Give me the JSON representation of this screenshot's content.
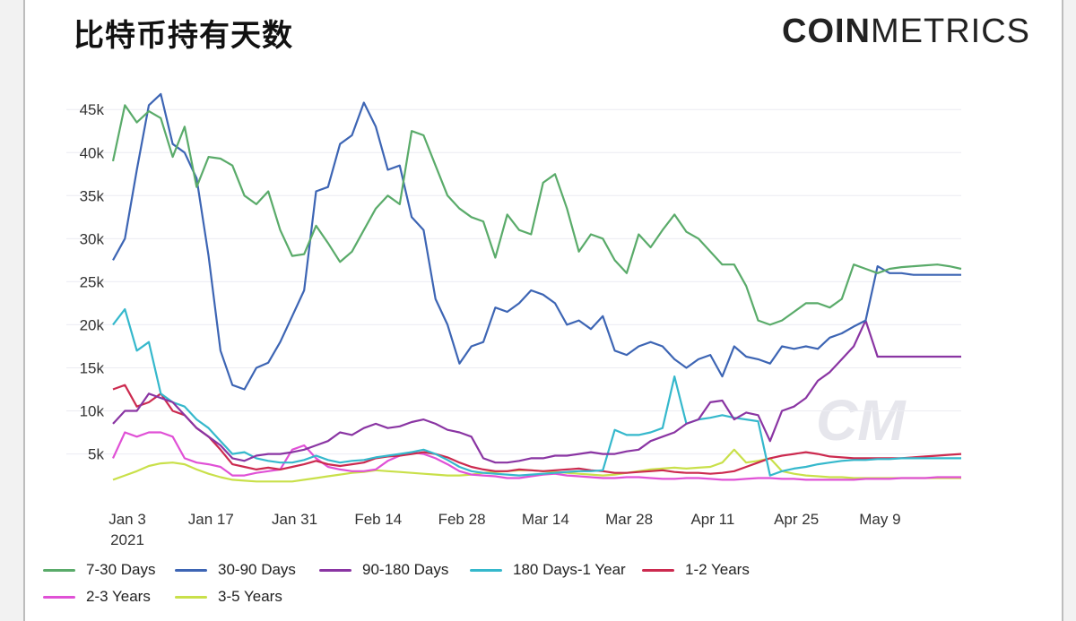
{
  "header": {
    "title": "比特币持有天数",
    "brand_part1": "COIN",
    "brand_part2": "METRICS"
  },
  "watermark": "CM",
  "chart_data": {
    "type": "line",
    "title": "比特币持有天数",
    "xlabel": "",
    "ylabel": "",
    "ylim": [
      0,
      47000
    ],
    "grid": true,
    "legend_position": "bottom-left",
    "x_tick_labels": [
      "Jan 3",
      "Jan 17",
      "Jan 31",
      "Feb 14",
      "Feb 28",
      "Mar 14",
      "Mar 28",
      "Apr 11",
      "Apr 25",
      "May 9"
    ],
    "x_tick_sublabel": "2021",
    "y_ticks": [
      5000,
      10000,
      15000,
      20000,
      25000,
      30000,
      35000,
      40000,
      45000
    ],
    "y_tick_labels": [
      "5k",
      "10k",
      "15k",
      "20k",
      "25k",
      "30k",
      "35k",
      "40k",
      "45k"
    ],
    "x_range_days": [
      0,
      142
    ],
    "series": [
      {
        "name": "7-30 Days",
        "color": "#5aab6a",
        "x": [
          0,
          2,
          4,
          6,
          8,
          10,
          12,
          14,
          16,
          18,
          20,
          22,
          24,
          26,
          28,
          30,
          32,
          34,
          36,
          38,
          40,
          42,
          44,
          46,
          48,
          50,
          52,
          54,
          56,
          58,
          60,
          62,
          64,
          66,
          68,
          70,
          72,
          74,
          76,
          78,
          80,
          82,
          84,
          86,
          88,
          90,
          92,
          94,
          96,
          98,
          100,
          102,
          104,
          106,
          108,
          110,
          112,
          114,
          116,
          118,
          120,
          122,
          124,
          126,
          128,
          130,
          132,
          134,
          136,
          138,
          140,
          142
        ],
        "y": [
          39000,
          45500,
          43500,
          44800,
          44000,
          39500,
          43000,
          36000,
          39500,
          39300,
          38500,
          35000,
          34000,
          35500,
          31000,
          28000,
          28200,
          31500,
          29500,
          27300,
          28500,
          31000,
          33500,
          35000,
          34000,
          42500,
          42000,
          38500,
          35000,
          33500,
          32500,
          32000,
          27800,
          32800,
          31000,
          30500,
          36500,
          37500,
          33500,
          28500,
          30500,
          30000,
          27500,
          26000,
          30500,
          29000,
          31000,
          32800,
          30800,
          30000,
          28500,
          27000,
          27000,
          24500,
          20500,
          20000,
          20500,
          21500,
          22500,
          22500,
          22000,
          23000,
          27000,
          26500,
          26000,
          26500,
          26700,
          26800,
          26900,
          27000,
          26800,
          26500
        ],
        "note_trend_end": "approx 26500 at May 23"
      },
      {
        "name": "30-90 Days",
        "color": "#3d65b4",
        "x": [
          0,
          2,
          4,
          6,
          8,
          10,
          12,
          14,
          16,
          18,
          20,
          22,
          24,
          26,
          28,
          30,
          32,
          34,
          36,
          38,
          40,
          42,
          44,
          46,
          48,
          50,
          52,
          54,
          56,
          58,
          60,
          62,
          64,
          66,
          68,
          70,
          72,
          74,
          76,
          78,
          80,
          82,
          84,
          86,
          88,
          90,
          92,
          94,
          96,
          98,
          100,
          102,
          104,
          106,
          108,
          110,
          112,
          114,
          116,
          118,
          120,
          122,
          124,
          126,
          128,
          130,
          132,
          134,
          136,
          138,
          140,
          142
        ],
        "y": [
          27500,
          30000,
          38000,
          45500,
          46800,
          41000,
          40000,
          37000,
          28000,
          17000,
          13000,
          12500,
          15000,
          15600,
          18000,
          21000,
          24000,
          35500,
          36000,
          41000,
          42000,
          45800,
          43000,
          38000,
          38500,
          32500,
          31000,
          23000,
          20000,
          15500,
          17500,
          18000,
          22000,
          21500,
          22500,
          24000,
          23500,
          22500,
          20000,
          20500,
          19500,
          21000,
          17000,
          16500,
          17500,
          18000,
          17500,
          16000,
          15000,
          16000,
          16500,
          14000,
          17500,
          16300,
          16000,
          15500,
          17500,
          17200,
          17500,
          17200,
          18500,
          19000,
          19800,
          20500,
          26800,
          26000,
          26000,
          25800,
          25800,
          25800,
          25800,
          25800
        ]
      },
      {
        "name": "90-180 Days",
        "color": "#8a35a3",
        "x": [
          0,
          2,
          4,
          6,
          8,
          10,
          12,
          14,
          16,
          18,
          20,
          22,
          24,
          26,
          28,
          30,
          32,
          34,
          36,
          38,
          40,
          42,
          44,
          46,
          48,
          50,
          52,
          54,
          56,
          58,
          60,
          62,
          64,
          66,
          68,
          70,
          72,
          74,
          76,
          78,
          80,
          82,
          84,
          86,
          88,
          90,
          92,
          94,
          96,
          98,
          100,
          102,
          104,
          106,
          108,
          110,
          112,
          114,
          116,
          118,
          120,
          122,
          124,
          126,
          128,
          130,
          132,
          134,
          136,
          138,
          140,
          142
        ],
        "y": [
          8500,
          10000,
          10000,
          12000,
          11500,
          11000,
          9500,
          8000,
          7000,
          6000,
          4500,
          4200,
          4800,
          5000,
          5000,
          5200,
          5500,
          6000,
          6500,
          7500,
          7200,
          8000,
          8500,
          8000,
          8200,
          8700,
          9000,
          8500,
          7800,
          7500,
          7000,
          4500,
          4000,
          4000,
          4200,
          4500,
          4500,
          4800,
          4800,
          5000,
          5200,
          5000,
          5000,
          5300,
          5500,
          6500,
          7000,
          7500,
          8500,
          9000,
          11000,
          11200,
          9000,
          9800,
          9500,
          6500,
          10000,
          10500,
          11500,
          13500,
          14500,
          16000,
          17500,
          20500,
          16300,
          16300,
          16300,
          16300,
          16300,
          16300,
          16300,
          16300
        ]
      },
      {
        "name": "180 Days-1 Year",
        "color": "#35b8cc",
        "x": [
          0,
          2,
          4,
          6,
          8,
          10,
          12,
          14,
          16,
          18,
          20,
          22,
          24,
          26,
          28,
          30,
          32,
          34,
          36,
          38,
          40,
          42,
          44,
          46,
          48,
          50,
          52,
          54,
          56,
          58,
          60,
          62,
          64,
          66,
          68,
          70,
          72,
          74,
          76,
          78,
          80,
          82,
          84,
          86,
          88,
          90,
          92,
          94,
          96,
          98,
          100,
          102,
          104,
          106,
          108,
          110,
          112,
          114,
          116,
          118,
          120,
          122,
          124,
          126,
          128,
          130,
          132,
          134,
          136,
          138,
          140,
          142
        ],
        "y": [
          20000,
          21800,
          17000,
          18000,
          12000,
          11000,
          10500,
          9000,
          8000,
          6500,
          5000,
          5200,
          4500,
          4200,
          4000,
          4000,
          4300,
          4800,
          4300,
          4000,
          4200,
          4300,
          4600,
          4800,
          5000,
          5200,
          5500,
          5000,
          4300,
          3500,
          3000,
          2800,
          2700,
          2600,
          2500,
          2600,
          2700,
          2800,
          2900,
          3000,
          3000,
          3100,
          7800,
          7200,
          7200,
          7500,
          8000,
          14000,
          8500,
          9000,
          9200,
          9500,
          9200,
          9000,
          8800,
          2500,
          3000,
          3300,
          3500,
          3800,
          4000,
          4200,
          4300,
          4300,
          4400,
          4400,
          4500,
          4500,
          4500,
          4500,
          4500,
          4500
        ]
      },
      {
        "name": "1-2 Years",
        "color": "#cc2a4f",
        "x": [
          0,
          2,
          4,
          6,
          8,
          10,
          12,
          14,
          16,
          18,
          20,
          22,
          24,
          26,
          28,
          30,
          32,
          34,
          36,
          38,
          40,
          42,
          44,
          46,
          48,
          50,
          52,
          54,
          56,
          58,
          60,
          62,
          64,
          66,
          68,
          70,
          72,
          74,
          76,
          78,
          80,
          82,
          84,
          86,
          88,
          90,
          92,
          94,
          96,
          98,
          100,
          102,
          104,
          106,
          108,
          110,
          112,
          114,
          116,
          118,
          120,
          122,
          124,
          126,
          128,
          130,
          132,
          134,
          136,
          138,
          140,
          142
        ],
        "y": [
          12500,
          13000,
          10500,
          11000,
          12000,
          10000,
          9500,
          8000,
          7000,
          5500,
          3800,
          3500,
          3200,
          3400,
          3200,
          3500,
          3800,
          4200,
          3800,
          3600,
          3800,
          4000,
          4500,
          4700,
          4800,
          5000,
          5200,
          5000,
          4600,
          4000,
          3500,
          3200,
          3000,
          3000,
          3200,
          3100,
          3000,
          3100,
          3200,
          3300,
          3100,
          3000,
          2800,
          2800,
          2900,
          3000,
          3100,
          2900,
          2800,
          2800,
          2700,
          2800,
          3000,
          3500,
          4000,
          4500,
          4800,
          5000,
          5200,
          5000,
          4700,
          4600,
          4500,
          4500,
          4500,
          4500,
          4500,
          4600,
          4700,
          4800,
          4900,
          5000
        ]
      },
      {
        "name": "2-3 Years",
        "color": "#e051d6",
        "x": [
          0,
          2,
          4,
          6,
          8,
          10,
          12,
          14,
          16,
          18,
          20,
          22,
          24,
          26,
          28,
          30,
          32,
          34,
          36,
          38,
          40,
          42,
          44,
          46,
          48,
          50,
          52,
          54,
          56,
          58,
          60,
          62,
          64,
          66,
          68,
          70,
          72,
          74,
          76,
          78,
          80,
          82,
          84,
          86,
          88,
          90,
          92,
          94,
          96,
          98,
          100,
          102,
          104,
          106,
          108,
          110,
          112,
          114,
          116,
          118,
          120,
          122,
          124,
          126,
          128,
          130,
          132,
          134,
          136,
          138,
          140,
          142
        ],
        "y": [
          4500,
          7500,
          7000,
          7500,
          7500,
          7000,
          4500,
          4000,
          3800,
          3500,
          2500,
          2500,
          2800,
          3000,
          3200,
          5500,
          6000,
          4500,
          3500,
          3200,
          3000,
          3000,
          3200,
          4200,
          4800,
          5200,
          5000,
          4500,
          3800,
          3000,
          2600,
          2500,
          2400,
          2200,
          2200,
          2400,
          2600,
          2700,
          2500,
          2400,
          2300,
          2200,
          2200,
          2300,
          2300,
          2200,
          2100,
          2100,
          2200,
          2200,
          2100,
          2000,
          2000,
          2100,
          2200,
          2200,
          2100,
          2100,
          2000,
          2000,
          2000,
          2000,
          2000,
          2100,
          2100,
          2100,
          2200,
          2200,
          2200,
          2300,
          2300,
          2300
        ]
      },
      {
        "name": "3-5 Years",
        "color": "#c9e04a",
        "x": [
          0,
          2,
          4,
          6,
          8,
          10,
          12,
          14,
          16,
          18,
          20,
          22,
          24,
          26,
          28,
          30,
          32,
          34,
          36,
          38,
          40,
          42,
          44,
          46,
          48,
          50,
          52,
          54,
          56,
          58,
          60,
          62,
          64,
          66,
          68,
          70,
          72,
          74,
          76,
          78,
          80,
          82,
          84,
          86,
          88,
          90,
          92,
          94,
          96,
          98,
          100,
          102,
          104,
          106,
          108,
          110,
          112,
          114,
          116,
          118,
          120,
          122,
          124,
          126,
          128,
          130,
          132,
          134,
          136,
          138,
          140,
          142
        ],
        "y": [
          2000,
          2500,
          3000,
          3600,
          3900,
          4000,
          3800,
          3200,
          2700,
          2300,
          2000,
          1900,
          1800,
          1800,
          1800,
          1800,
          2000,
          2200,
          2400,
          2600,
          2800,
          2900,
          3100,
          3000,
          2900,
          2800,
          2700,
          2600,
          2500,
          2500,
          2600,
          2800,
          2900,
          3000,
          3100,
          3100,
          3000,
          2900,
          2800,
          2700,
          2600,
          2500,
          2600,
          2800,
          3000,
          3200,
          3300,
          3400,
          3300,
          3400,
          3500,
          4000,
          5500,
          4000,
          4200,
          4500,
          3000,
          2700,
          2500,
          2400,
          2300,
          2300,
          2200,
          2200,
          2200,
          2200,
          2200,
          2200,
          2200,
          2200,
          2200,
          2200
        ]
      }
    ]
  }
}
